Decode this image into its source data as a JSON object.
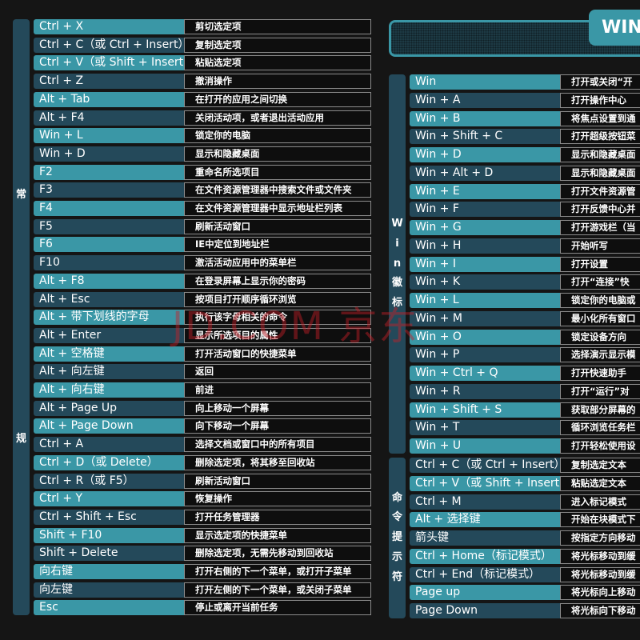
{
  "colors": {
    "key_light": "#3a97a6",
    "key_dark": "#24495a",
    "desc_bg": "#0e0e0e",
    "background": "#151515"
  },
  "header": {
    "tab_label": "WIN"
  },
  "watermark": "JD.COM 京东",
  "sections": {
    "general": {
      "label": [
        "常",
        "规"
      ],
      "rows": [
        {
          "key": "Ctrl + X",
          "desc": "剪切选定项"
        },
        {
          "key": "Ctrl + C（或 Ctrl + Insert）",
          "desc": "复制选定项"
        },
        {
          "key": "Ctrl + V（或 Shift + Insert）",
          "desc": "粘贴选定项"
        },
        {
          "key": "Ctrl + Z",
          "desc": "撤消操作"
        },
        {
          "key": "Alt + Tab",
          "desc": "在打开的应用之间切换"
        },
        {
          "key": "Alt + F4",
          "desc": "关闭活动项，或者退出活动应用"
        },
        {
          "key": "Win + L",
          "desc": "锁定你的电脑"
        },
        {
          "key": "Win + D",
          "desc": "显示和隐藏桌面"
        },
        {
          "key": "F2",
          "desc": "重命名所选项目"
        },
        {
          "key": "F3",
          "desc": "在文件资源管理器中搜索文件或文件夹"
        },
        {
          "key": "F4",
          "desc": "在文件资源管理器中显示地址栏列表"
        },
        {
          "key": "F5",
          "desc": "刷新活动窗口"
        },
        {
          "key": "F6",
          "desc": "IE中定位到地址栏"
        },
        {
          "key": "F10",
          "desc": "激活活动应用中的菜单栏"
        },
        {
          "key": "Alt + F8",
          "desc": "在登录屏幕上显示你的密码"
        },
        {
          "key": "Alt + Esc",
          "desc": "按项目打开顺序循环浏览"
        },
        {
          "key": "Alt + 带下划线的字母",
          "desc": "执行该字母相关的命令"
        },
        {
          "key": "Alt + Enter",
          "desc": "显示所选项目的属性"
        },
        {
          "key": "Alt + 空格键",
          "desc": "打开活动窗口的快捷菜单"
        },
        {
          "key": "Alt + 向左键",
          "desc": "返回"
        },
        {
          "key": "Alt + 向右键",
          "desc": "前进"
        },
        {
          "key": "Alt + Page Up",
          "desc": "向上移动一个屏幕"
        },
        {
          "key": "Alt + Page Down",
          "desc": "向下移动一个屏幕"
        },
        {
          "key": "Ctrl + A",
          "desc": "选择文档或窗口中的所有项目"
        },
        {
          "key": "Ctrl + D（或 Delete）",
          "desc": "删除选定项，将其移至回收站"
        },
        {
          "key": "Ctrl + R（或 F5）",
          "desc": "刷新活动窗口"
        },
        {
          "key": "Ctrl + Y",
          "desc": "恢复操作"
        },
        {
          "key": "Ctrl + Shift + Esc",
          "desc": "打开任务管理器"
        },
        {
          "key": "Shift + F10",
          "desc": "显示选定项的快捷菜单"
        },
        {
          "key": "Shift + Delete",
          "desc": "删除选定项，无需先移动到回收站"
        },
        {
          "key": "向右键",
          "desc": "打开右侧的下一个菜单，或打开子菜单"
        },
        {
          "key": "向左键",
          "desc": "打开左侧的下一个菜单，或关闭子菜单"
        },
        {
          "key": "Esc",
          "desc": "停止或离开当前任务"
        }
      ]
    },
    "win_logo": {
      "label": [
        "W",
        "i",
        "n",
        "徽",
        "标"
      ],
      "rows": [
        {
          "key": "Win",
          "desc": "打开或关闭“开"
        },
        {
          "key": "Win + A",
          "desc": "打开操作中心"
        },
        {
          "key": "Win + B",
          "desc": "将焦点设置到通"
        },
        {
          "key": "Win + Shift + C",
          "desc": "打开超级按钮菜"
        },
        {
          "key": "Win + D",
          "desc": "显示和隐藏桌面"
        },
        {
          "key": "Win + Alt + D",
          "desc": "显示和隐藏桌面"
        },
        {
          "key": "Win + E",
          "desc": "打开文件资源管"
        },
        {
          "key": "Win + F",
          "desc": "打开反馈中心并"
        },
        {
          "key": "Win + G",
          "desc": "打开游戏栏（当"
        },
        {
          "key": "Win + H",
          "desc": "开始听写"
        },
        {
          "key": "Win + I",
          "desc": "打开设置"
        },
        {
          "key": "Win + K",
          "desc": "打开“连接”快"
        },
        {
          "key": "Win + L",
          "desc": "锁定你的电脑或"
        },
        {
          "key": "Win + M",
          "desc": "最小化所有窗口"
        },
        {
          "key": "Win + O",
          "desc": "锁定设备方向"
        },
        {
          "key": "Win + P",
          "desc": "选择演示显示模"
        },
        {
          "key": "Win + Ctrl + Q",
          "desc": "打开快速助手"
        },
        {
          "key": "Win + R",
          "desc": "打开“运行”对"
        },
        {
          "key": "Win + Shift + S",
          "desc": "获取部分屏幕的"
        },
        {
          "key": "Win + T",
          "desc": "循环浏览任务栏"
        },
        {
          "key": "Win + U",
          "desc": "打开轻松使用设"
        }
      ]
    },
    "command_prompt": {
      "label": [
        "命",
        "令",
        "提",
        "示",
        "符"
      ],
      "rows": [
        {
          "key": "Ctrl + C（或 Ctrl + Insert）",
          "desc": "复制选定文本"
        },
        {
          "key": "Ctrl + V（或 Shift + Insert）",
          "desc": "粘贴选定文本"
        },
        {
          "key": "Ctrl + M",
          "desc": "进入标记模式"
        },
        {
          "key": "Alt + 选择键",
          "desc": "开始在块模式下"
        },
        {
          "key": "箭头键",
          "desc": "按指定方向移动"
        },
        {
          "key": "Ctrl + Home（标记模式）",
          "desc": "将光标移动到缓"
        },
        {
          "key": "Ctrl + End（标记模式）",
          "desc": "将光标移动到缓"
        },
        {
          "key": "Page up",
          "desc": "将光标向上移动"
        },
        {
          "key": "Page Down",
          "desc": "将光标向下移动"
        }
      ]
    }
  }
}
